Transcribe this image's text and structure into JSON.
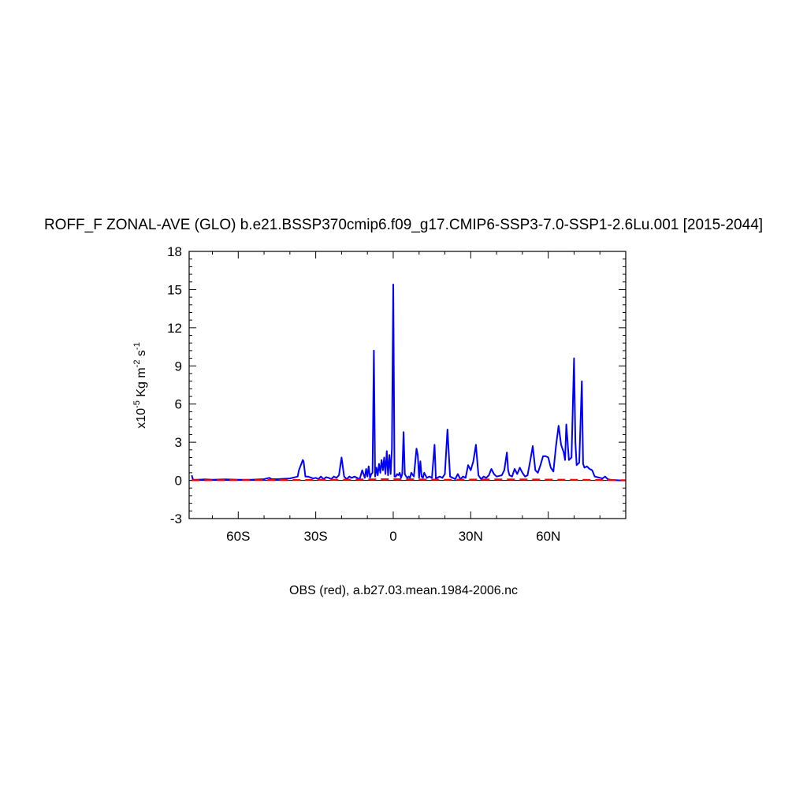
{
  "chart_data": {
    "type": "line",
    "title": "ROFF_F ZONAL-AVE (GLO) b.e21.BSSP370cmip6.f09_g17.CMIP6-SSP3-7.0-SSP1-2.6Lu.001 [2015-2044]",
    "ylabel": {
      "base": "x10",
      "exp1": "-5",
      "mid": " Kg m",
      "exp2": "-2",
      "mid2": " s",
      "exp3": "-1"
    },
    "footer": "OBS (red), a.b27.03.mean.1984-2006.nc",
    "xlim": [
      -79,
      90
    ],
    "ylim": [
      -3,
      18
    ],
    "x_ticks": [
      {
        "value": -60,
        "label": "60S"
      },
      {
        "value": -30,
        "label": "30S"
      },
      {
        "value": 0,
        "label": "0"
      },
      {
        "value": 30,
        "label": "30N"
      },
      {
        "value": 60,
        "label": "60N"
      }
    ],
    "y_ticks": [
      {
        "value": -3,
        "label": "-3"
      },
      {
        "value": 0,
        "label": "0"
      },
      {
        "value": 3,
        "label": "3"
      },
      {
        "value": 6,
        "label": "6"
      },
      {
        "value": 9,
        "label": "9"
      },
      {
        "value": 12,
        "label": "12"
      },
      {
        "value": 15,
        "label": "15"
      },
      {
        "value": 18,
        "label": "18"
      }
    ],
    "series": [
      {
        "color": "#0000ff",
        "style": "solid",
        "x": [
          -78,
          -77.5,
          -76,
          -73,
          -70,
          -65,
          -60,
          -55,
          -50,
          -48,
          -47,
          -45,
          -40,
          -37,
          -36.5,
          -35,
          -34.7,
          -34,
          -33,
          -31,
          -30,
          -29,
          -28,
          -27,
          -26,
          -25,
          -24,
          -23,
          -22,
          -21,
          -20,
          -19,
          -18.5,
          -18,
          -17,
          -16,
          -15,
          -14,
          -13,
          -12,
          -11,
          -10.5,
          -10,
          -9.5,
          -9,
          -8.5,
          -8,
          -7.5,
          -7,
          -6.5,
          -6,
          -5.5,
          -5,
          -4.5,
          -4,
          -3.5,
          -3,
          -2.5,
          -2,
          -1.5,
          -1,
          -0.5,
          0,
          0.5,
          1,
          1.5,
          2,
          2.5,
          3,
          3.5,
          4,
          4.5,
          5,
          5.5,
          6,
          6.5,
          7,
          8,
          9,
          9.5,
          10,
          10.5,
          11,
          11.5,
          12,
          13,
          14,
          15,
          16,
          16.5,
          17,
          18,
          19,
          20,
          21,
          22,
          23,
          24,
          25,
          26,
          27,
          28,
          29,
          30,
          31,
          32,
          33,
          34,
          35,
          36,
          37,
          38,
          39,
          40,
          42,
          43,
          44,
          44.5,
          45,
          46,
          47,
          48,
          49,
          50,
          51,
          52,
          53,
          54,
          55,
          56,
          57,
          58,
          59,
          60,
          61,
          62,
          63,
          64,
          65,
          66,
          66.5,
          67,
          68,
          69,
          70,
          70.5,
          71,
          72,
          73,
          73.5,
          74,
          75,
          76,
          77,
          78,
          79,
          80,
          81,
          82,
          82.5,
          83,
          84,
          86,
          88,
          90
        ],
        "y": [
          0.4,
          0.05,
          0.05,
          0.08,
          0.05,
          0.08,
          0.05,
          0.05,
          0.1,
          0.2,
          0.1,
          0.1,
          0.15,
          0.3,
          0.8,
          1.6,
          1.5,
          0.3,
          0.3,
          0.15,
          0.2,
          0.1,
          0.3,
          0.1,
          0.25,
          0.2,
          0.1,
          0.3,
          0.2,
          0.4,
          1.8,
          0.3,
          0.2,
          0.1,
          0.3,
          0.2,
          0.3,
          0.2,
          0.1,
          0.8,
          0.2,
          0.9,
          0.3,
          1.1,
          0.2,
          0.5,
          0.6,
          10.2,
          0.3,
          1.0,
          0.4,
          1.3,
          0.6,
          1.6,
          0.8,
          1.8,
          0.5,
          2.3,
          0.4,
          2.0,
          0.5,
          2.5,
          15.4,
          0.3,
          0.3,
          0.5,
          0.4,
          0.6,
          0.2,
          0.5,
          3.8,
          0.5,
          0.3,
          0.2,
          0.3,
          0.2,
          0.6,
          0.3,
          2.5,
          2.0,
          0.2,
          1.5,
          0.3,
          0.2,
          0.6,
          0.2,
          0.3,
          0.2,
          2.8,
          0.1,
          0.2,
          0.3,
          0.2,
          0.5,
          4.0,
          0.3,
          0.2,
          0.1,
          0.5,
          0.1,
          0.3,
          0.2,
          1.2,
          0.8,
          1.5,
          2.8,
          0.4,
          0.1,
          0.3,
          0.2,
          0.4,
          0.9,
          0.5,
          0.3,
          0.4,
          0.8,
          2.2,
          0.8,
          0.4,
          0.3,
          0.9,
          0.5,
          1.0,
          0.6,
          0.3,
          0.4,
          1.5,
          2.7,
          0.8,
          0.6,
          1.2,
          1.9,
          1.9,
          1.8,
          1.0,
          0.7,
          2.7,
          4.3,
          2.8,
          2.2,
          1.6,
          4.4,
          1.6,
          1.8,
          9.6,
          3.0,
          1.2,
          1.4,
          7.8,
          1.3,
          1.0,
          1.1,
          0.9,
          0.8,
          0.3,
          0.25,
          0.2,
          0.15,
          0.3,
          0.2,
          0.1,
          0.05,
          0.02,
          0.0,
          0.0
        ]
      },
      {
        "color": "#ff0000",
        "style": "dashed",
        "x": [
          -78,
          -60,
          -40,
          -20,
          -10,
          0,
          10,
          20,
          30,
          40,
          50,
          60,
          70,
          80,
          90
        ],
        "y": [
          0.01,
          0.02,
          0.03,
          0.05,
          0.08,
          0.1,
          0.08,
          0.05,
          0.06,
          0.08,
          0.08,
          0.06,
          0.05,
          0.03,
          0.01
        ]
      }
    ]
  }
}
